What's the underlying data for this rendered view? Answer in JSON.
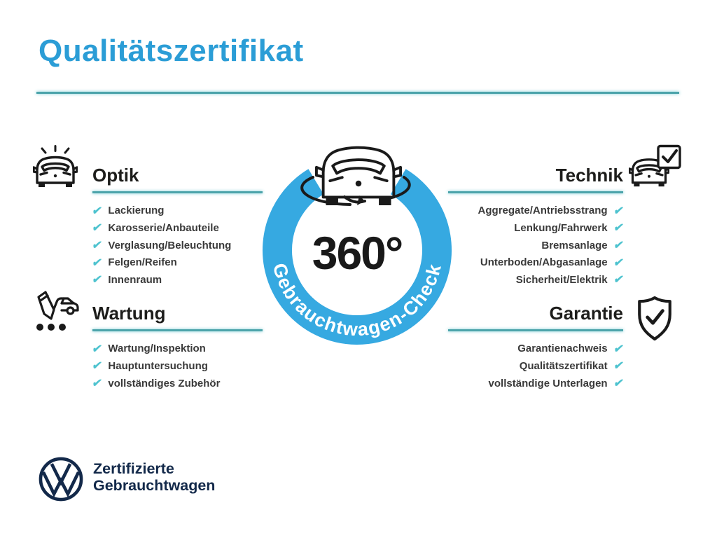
{
  "header": {
    "title": "Qualitätszertifikat"
  },
  "center": {
    "degrees": "360°",
    "ring_label": "Gebrauchtwagen-Check"
  },
  "sections": {
    "optik": {
      "title": "Optik",
      "items": [
        "Lackierung",
        "Karosserie/Anbauteile",
        "Verglasung/Beleuchtung",
        "Felgen/Reifen",
        "Innenraum"
      ]
    },
    "technik": {
      "title": "Technik",
      "items": [
        "Aggregate/Antriebsstrang",
        "Lenkung/Fahrwerk",
        "Bremsanlage",
        "Unterboden/Abgasanlage",
        "Sicherheit/Elektrik"
      ]
    },
    "wartung": {
      "title": "Wartung",
      "items": [
        "Wartung/Inspektion",
        "Hauptuntersuchung",
        "vollständiges Zubehör"
      ]
    },
    "garantie": {
      "title": "Garantie",
      "items": [
        "Garantienachweis",
        "Qualitätszertifikat",
        "vollständige Unterlagen"
      ]
    }
  },
  "footer": {
    "line1": "Zertifizierte",
    "line2": "Gebrauchtwagen"
  },
  "icons": {
    "check_glyph": "✔",
    "optik": "car-shine-icon",
    "technik": "car-checkbox-icon",
    "wartung": "service-checklist-icon",
    "garantie": "shield-check-icon",
    "center": "car-360-rotation-icon",
    "brand": "vw-logo"
  },
  "colors": {
    "title_blue": "#2b9dd6",
    "ring_blue": "#36a9e1",
    "rule_teal": "#4da4ab",
    "check_teal": "#4ec3cf",
    "vw_navy": "#13294a"
  }
}
